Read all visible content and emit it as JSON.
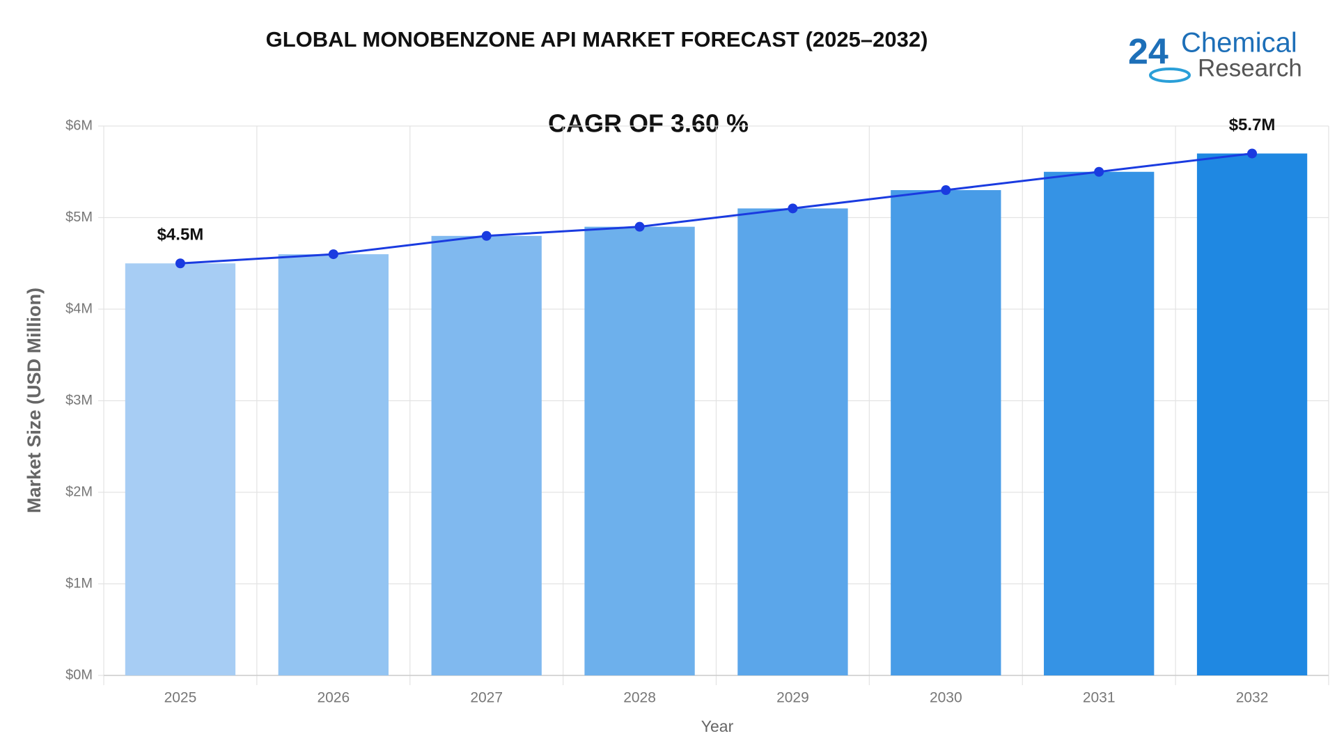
{
  "chart_data": {
    "type": "bar",
    "title": "GLOBAL MONOBENZONE API MARKET FORECAST (2025–2032)",
    "annotation": "CAGR OF 3.60 %",
    "logo": {
      "number": "24",
      "line1": "Chemical",
      "line2": "Research"
    },
    "x_label": "Year",
    "y_label": "Market Size (USD Million)",
    "categories": [
      "2025",
      "2026",
      "2027",
      "2028",
      "2029",
      "2030",
      "2031",
      "2032"
    ],
    "series": [
      {
        "type": "bar",
        "colors": [
          "#a7cdf4",
          "#93c4f2",
          "#80b9ef",
          "#6db0ec",
          "#5ba6ea",
          "#489ce7",
          "#3593e5",
          "#1f88e2"
        ],
        "values": [
          4.5,
          4.6,
          4.8,
          4.9,
          5.1,
          5.3,
          5.5,
          5.7
        ]
      },
      {
        "type": "line",
        "color": "#1a3be0",
        "values": [
          4.5,
          4.6,
          4.8,
          4.9,
          5.1,
          5.3,
          5.5,
          5.7
        ],
        "value_labels": [
          "$4.5M",
          null,
          null,
          null,
          null,
          null,
          null,
          "$5.7M"
        ]
      }
    ],
    "ylim": [
      0,
      6
    ],
    "yticks": [
      {
        "value": 0,
        "label": "$0M"
      },
      {
        "value": 1,
        "label": "$1M"
      },
      {
        "value": 2,
        "label": "$2M"
      },
      {
        "value": 3,
        "label": "$3M"
      },
      {
        "value": 4,
        "label": "$4M"
      },
      {
        "value": 5,
        "label": "$5M"
      },
      {
        "value": 6,
        "label": "$6M"
      }
    ],
    "grid": true
  }
}
